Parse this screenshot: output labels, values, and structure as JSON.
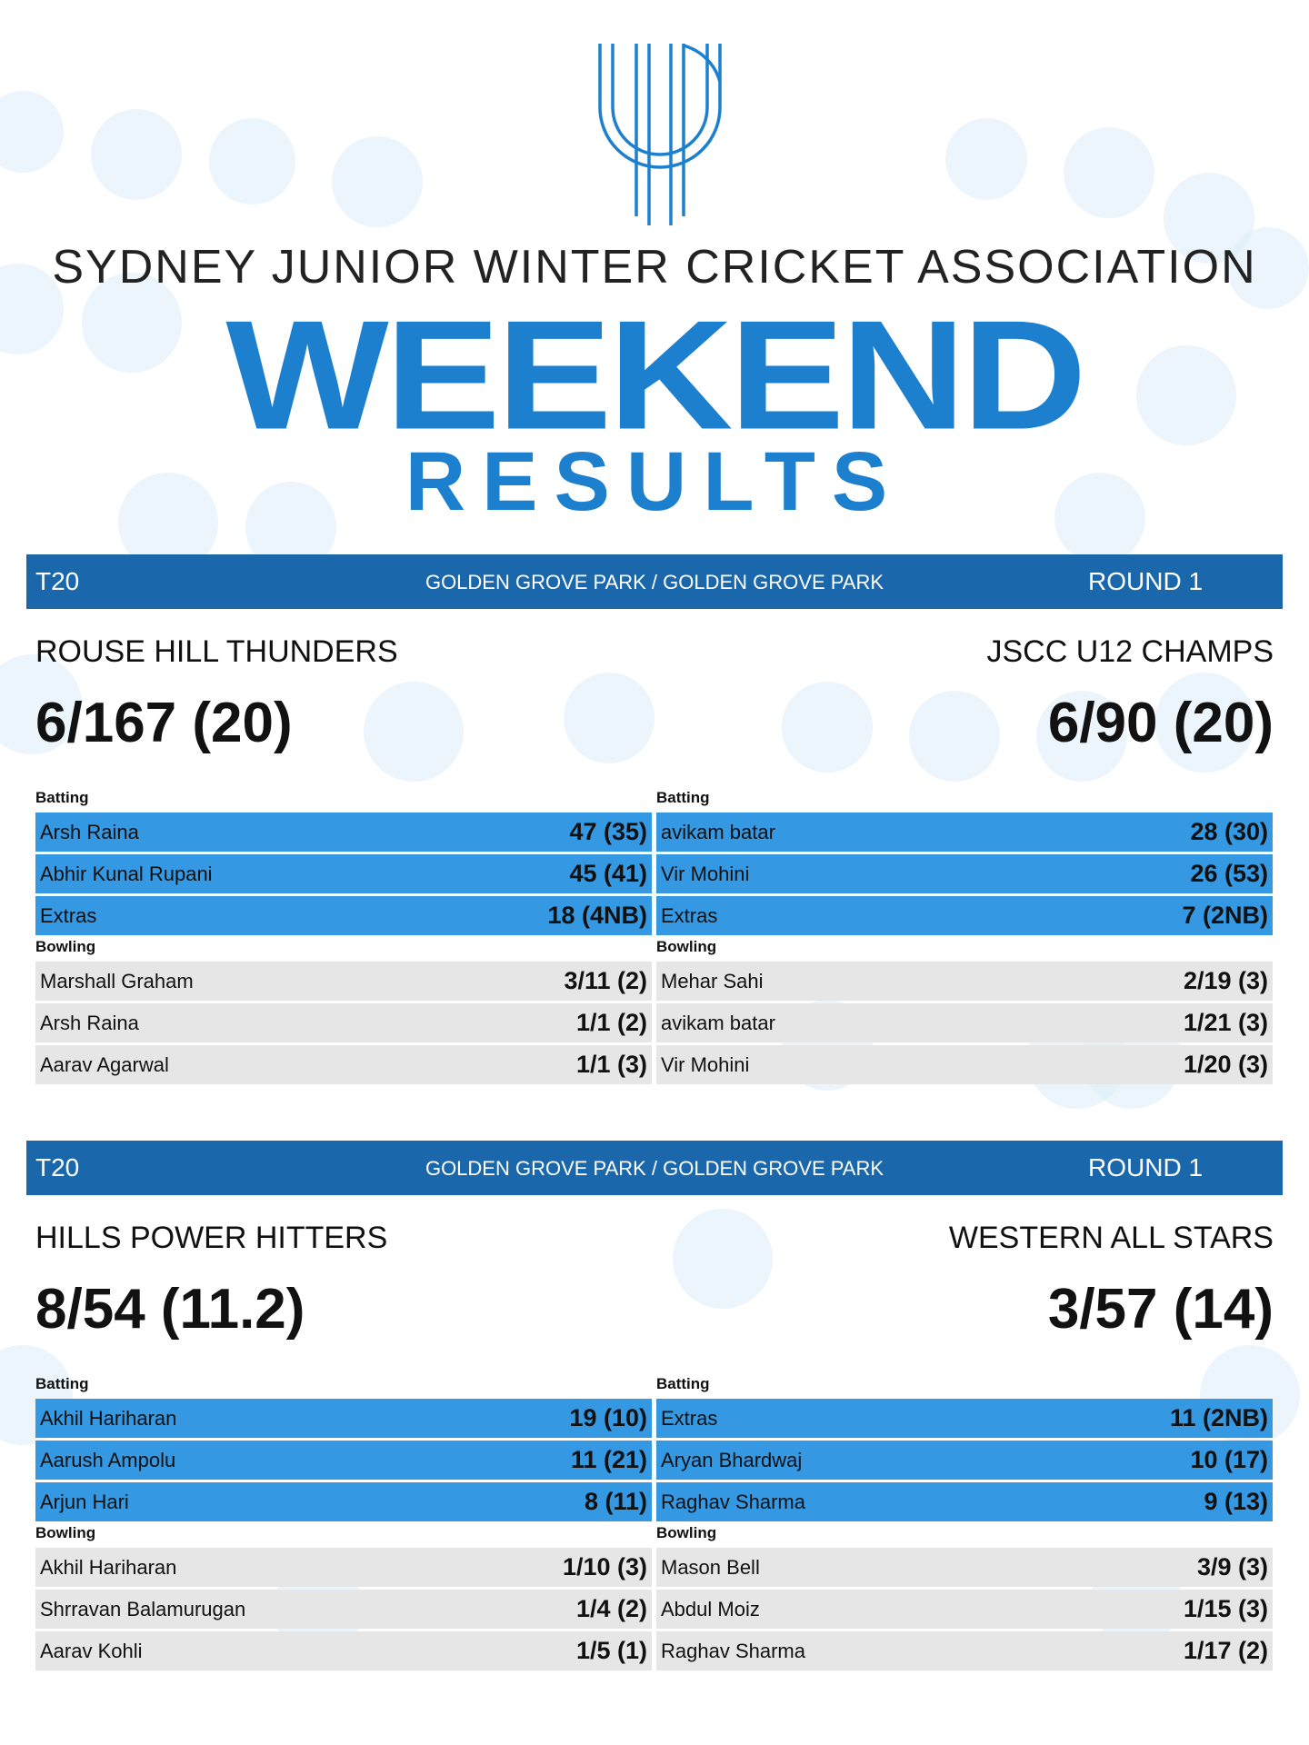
{
  "header": {
    "logo_alt": "SJWCA",
    "association": "SYDNEY JUNIOR WINTER CRICKET ASSOCIATION",
    "headline": "WEEKEND",
    "subheadline": "RESULTS"
  },
  "colors": {
    "primary_blue": "#1c80cf",
    "bar_blue": "#1a68ab",
    "batting_row": "#3598e2",
    "bowling_row": "#e6e6e6"
  },
  "matches": [
    {
      "format": "T20",
      "venue": "GOLDEN GROVE PARK / GOLDEN GROVE PARK",
      "round": "ROUND 1",
      "team_left": {
        "name": "ROUSE HILL THUNDERS",
        "score": "6/167 (20)",
        "batting_label": "Batting",
        "batting": [
          {
            "name": "Arsh Raina",
            "value": "47 (35)"
          },
          {
            "name": "Abhir Kunal Rupani",
            "value": "45 (41)"
          },
          {
            "name": "Extras",
            "value": "18 (4NB)"
          }
        ],
        "bowling_label": "Bowling",
        "bowling": [
          {
            "name": "Marshall Graham",
            "value": "3/11 (2)"
          },
          {
            "name": "Arsh Raina",
            "value": "1/1 (2)"
          },
          {
            "name": "Aarav Agarwal",
            "value": "1/1 (3)"
          }
        ]
      },
      "team_right": {
        "name": "JSCC U12 CHAMPS",
        "score": "6/90 (20)",
        "batting_label": "Batting",
        "batting": [
          {
            "name": "avikam batar",
            "value": "28 (30)"
          },
          {
            "name": "Vir Mohini",
            "value": "26 (53)"
          },
          {
            "name": "Extras",
            "value": "7 (2NB)"
          }
        ],
        "bowling_label": "Bowling",
        "bowling": [
          {
            "name": "Mehar Sahi",
            "value": "2/19 (3)"
          },
          {
            "name": "avikam batar",
            "value": "1/21 (3)"
          },
          {
            "name": "Vir Mohini",
            "value": "1/20 (3)"
          }
        ]
      }
    },
    {
      "format": "T20",
      "venue": "GOLDEN GROVE PARK / GOLDEN GROVE PARK",
      "round": "ROUND 1",
      "team_left": {
        "name": "HILLS POWER HITTERS",
        "score": "8/54 (11.2)",
        "batting_label": "Batting",
        "batting": [
          {
            "name": "Akhil Hariharan",
            "value": "19 (10)"
          },
          {
            "name": "Aarush Ampolu",
            "value": "11 (21)"
          },
          {
            "name": "Arjun Hari",
            "value": "8 (11)"
          }
        ],
        "bowling_label": "Bowling",
        "bowling": [
          {
            "name": "Akhil Hariharan",
            "value": "1/10 (3)"
          },
          {
            "name": "Shrravan Balamurugan",
            "value": "1/4 (2)"
          },
          {
            "name": "Aarav Kohli",
            "value": "1/5 (1)"
          }
        ]
      },
      "team_right": {
        "name": "WESTERN ALL STARS",
        "score": "3/57 (14)",
        "batting_label": "Batting",
        "batting": [
          {
            "name": "Extras",
            "value": "11 (2NB)"
          },
          {
            "name": "Aryan Bhardwaj",
            "value": "10 (17)"
          },
          {
            "name": "Raghav Sharma",
            "value": "9 (13)"
          }
        ],
        "bowling_label": "Bowling",
        "bowling": [
          {
            "name": "Mason Bell",
            "value": "3/9 (3)"
          },
          {
            "name": "Abdul Moiz",
            "value": "1/15 (3)"
          },
          {
            "name": "Raghav Sharma",
            "value": "1/17 (2)"
          }
        ]
      }
    }
  ]
}
